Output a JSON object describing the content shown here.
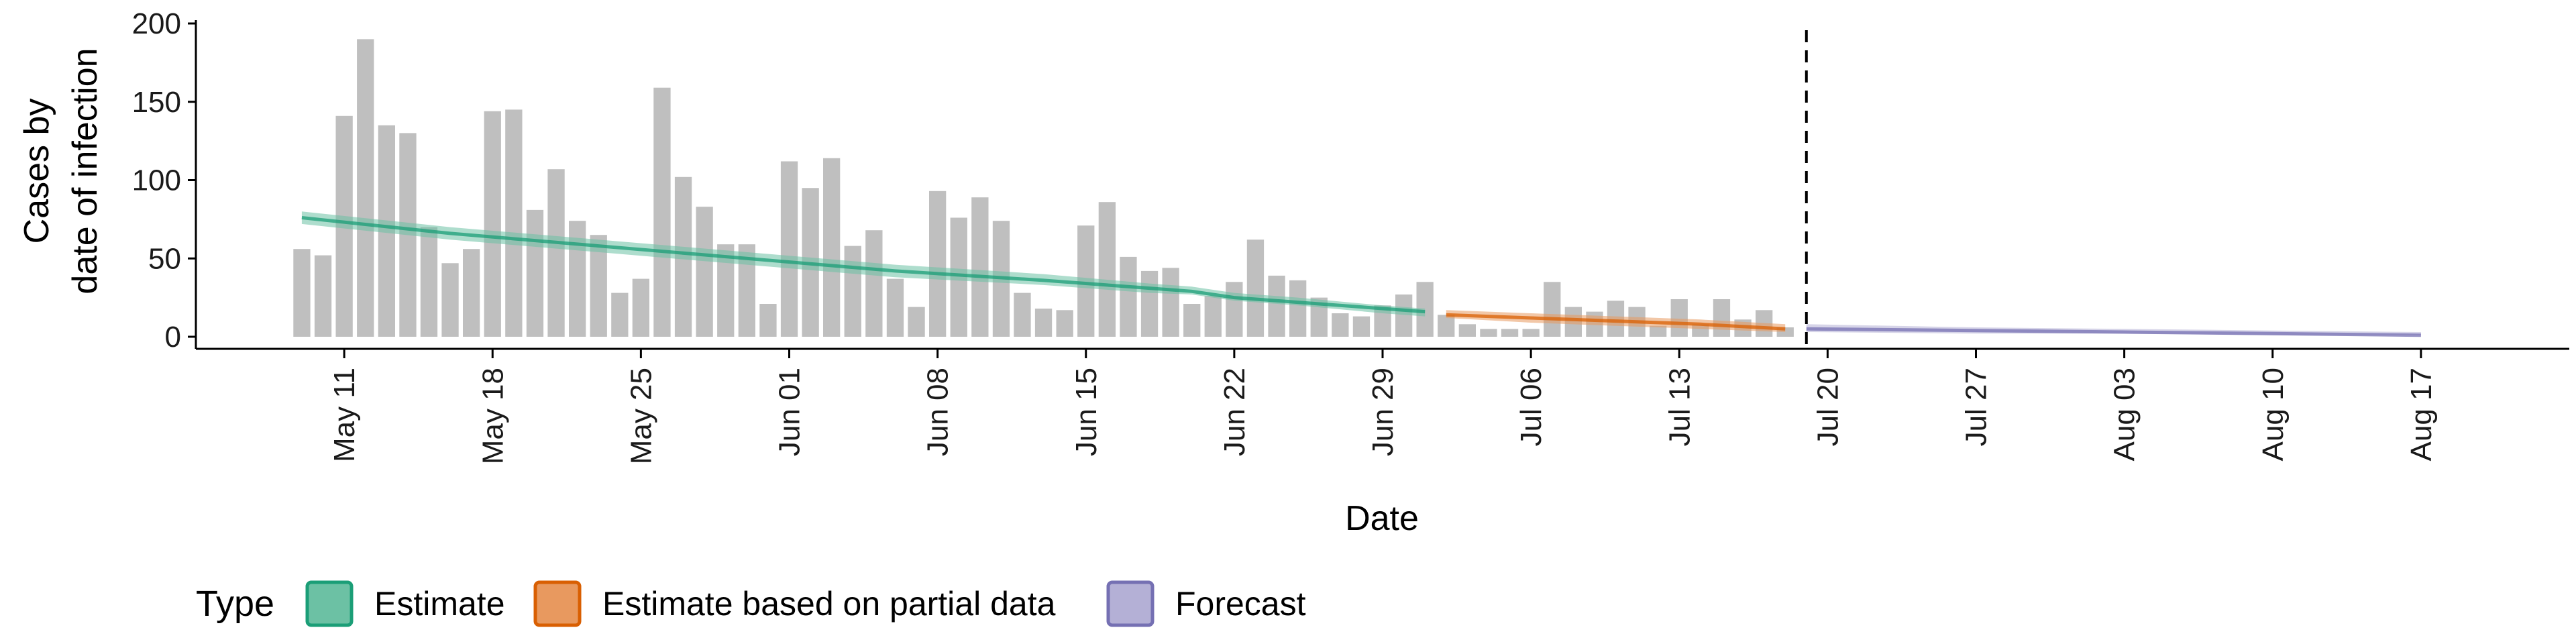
{
  "chart_data": {
    "type": "bar",
    "xlabel": "Date",
    "ylabel_lines": [
      "Cases by",
      "date of infection"
    ],
    "ylim": [
      0,
      200
    ],
    "y_ticks": [
      0,
      50,
      100,
      150,
      200
    ],
    "x_range": [
      "2021-05-04",
      "2021-08-24"
    ],
    "x_ticks": [
      {
        "date": "2021-05-11",
        "label": "May 11"
      },
      {
        "date": "2021-05-18",
        "label": "May 18"
      },
      {
        "date": "2021-05-25",
        "label": "May 25"
      },
      {
        "date": "2021-06-01",
        "label": "Jun 01"
      },
      {
        "date": "2021-06-08",
        "label": "Jun 08"
      },
      {
        "date": "2021-06-15",
        "label": "Jun 15"
      },
      {
        "date": "2021-06-22",
        "label": "Jun 22"
      },
      {
        "date": "2021-06-29",
        "label": "Jun 29"
      },
      {
        "date": "2021-07-06",
        "label": "Jul 06"
      },
      {
        "date": "2021-07-13",
        "label": "Jul 13"
      },
      {
        "date": "2021-07-20",
        "label": "Jul 20"
      },
      {
        "date": "2021-07-27",
        "label": "Jul 27"
      },
      {
        "date": "2021-08-03",
        "label": "Aug 03"
      },
      {
        "date": "2021-08-10",
        "label": "Aug 10"
      },
      {
        "date": "2021-08-17",
        "label": "Aug 17"
      }
    ],
    "bars": {
      "dates": [
        "2021-05-09",
        "2021-05-10",
        "2021-05-11",
        "2021-05-12",
        "2021-05-13",
        "2021-05-14",
        "2021-05-15",
        "2021-05-16",
        "2021-05-17",
        "2021-05-18",
        "2021-05-19",
        "2021-05-20",
        "2021-05-21",
        "2021-05-22",
        "2021-05-23",
        "2021-05-24",
        "2021-05-25",
        "2021-05-26",
        "2021-05-27",
        "2021-05-28",
        "2021-05-29",
        "2021-05-30",
        "2021-05-31",
        "2021-06-01",
        "2021-06-02",
        "2021-06-03",
        "2021-06-04",
        "2021-06-05",
        "2021-06-06",
        "2021-06-07",
        "2021-06-08",
        "2021-06-09",
        "2021-06-10",
        "2021-06-11",
        "2021-06-12",
        "2021-06-13",
        "2021-06-14",
        "2021-06-15",
        "2021-06-16",
        "2021-06-17",
        "2021-06-18",
        "2021-06-19",
        "2021-06-20",
        "2021-06-21",
        "2021-06-22",
        "2021-06-23",
        "2021-06-24",
        "2021-06-25",
        "2021-06-26",
        "2021-06-27",
        "2021-06-28",
        "2021-06-29",
        "2021-06-30",
        "2021-07-01",
        "2021-07-02",
        "2021-07-03",
        "2021-07-04",
        "2021-07-05",
        "2021-07-06",
        "2021-07-07",
        "2021-07-08",
        "2021-07-09",
        "2021-07-10",
        "2021-07-11",
        "2021-07-12",
        "2021-07-13",
        "2021-07-14",
        "2021-07-15",
        "2021-07-16",
        "2021-07-17",
        "2021-07-18"
      ],
      "values": [
        56,
        52,
        141,
        190,
        135,
        130,
        70,
        47,
        56,
        144,
        145,
        81,
        107,
        74,
        65,
        28,
        37,
        159,
        102,
        83,
        59,
        59,
        21,
        112,
        95,
        114,
        58,
        68,
        37,
        19,
        93,
        76,
        89,
        74,
        28,
        18,
        17,
        71,
        86,
        51,
        42,
        44,
        21,
        26,
        35,
        62,
        39,
        36,
        25,
        15,
        13,
        20,
        27,
        35,
        14,
        8,
        5,
        5,
        5,
        35,
        19,
        16,
        23,
        19,
        7,
        24,
        8,
        24,
        11,
        17,
        6
      ],
      "color": "#bfbfbf"
    },
    "estimates": [
      {
        "name": "Estimate",
        "color": "#1b9e77",
        "fill": "#6cc1a4",
        "dates": [
          "2021-05-09",
          "2021-05-16",
          "2021-05-23",
          "2021-05-30",
          "2021-06-06",
          "2021-06-13",
          "2021-06-18",
          "2021-06-20",
          "2021-06-22",
          "2021-06-25",
          "2021-06-29",
          "2021-07-01"
        ],
        "median": [
          76,
          66,
          58,
          50,
          42,
          36,
          31,
          29,
          25,
          22,
          18,
          16
        ],
        "lower": [
          72,
          62,
          54,
          46,
          38,
          33,
          28,
          27,
          23,
          20,
          15,
          13
        ],
        "upper": [
          80,
          70,
          62,
          54,
          46,
          40,
          34,
          32,
          28,
          25,
          20,
          18
        ]
      },
      {
        "name": "Estimate based on partial data",
        "color": "#d95f02",
        "fill": "#e8995f",
        "dates": [
          "2021-07-02",
          "2021-07-06",
          "2021-07-10",
          "2021-07-14",
          "2021-07-18"
        ],
        "median": [
          14,
          12,
          10,
          8,
          5
        ],
        "lower": [
          12,
          9,
          7,
          5,
          3
        ],
        "upper": [
          17,
          15,
          13,
          11,
          8
        ]
      },
      {
        "name": "Forecast",
        "color": "#7570b3",
        "fill": "#b4b0d6",
        "dates": [
          "2021-07-19",
          "2021-07-27",
          "2021-08-03",
          "2021-08-10",
          "2021-08-17"
        ],
        "median": [
          5,
          4,
          3,
          2,
          1
        ],
        "lower": [
          3,
          2,
          2,
          1,
          1
        ],
        "upper": [
          8,
          6,
          5,
          4,
          3
        ]
      }
    ],
    "vline_date": "2021-07-19",
    "legend_title": "Type",
    "legend_position": "bottom",
    "legend_items": [
      {
        "label": "Estimate",
        "fill": "#6cc1a4",
        "stroke": "#1b9e77"
      },
      {
        "label": "Estimate based on partial data",
        "fill": "#e8995f",
        "stroke": "#d95f02"
      },
      {
        "label": "Forecast",
        "fill": "#b4b0d6",
        "stroke": "#7570b3"
      }
    ]
  }
}
